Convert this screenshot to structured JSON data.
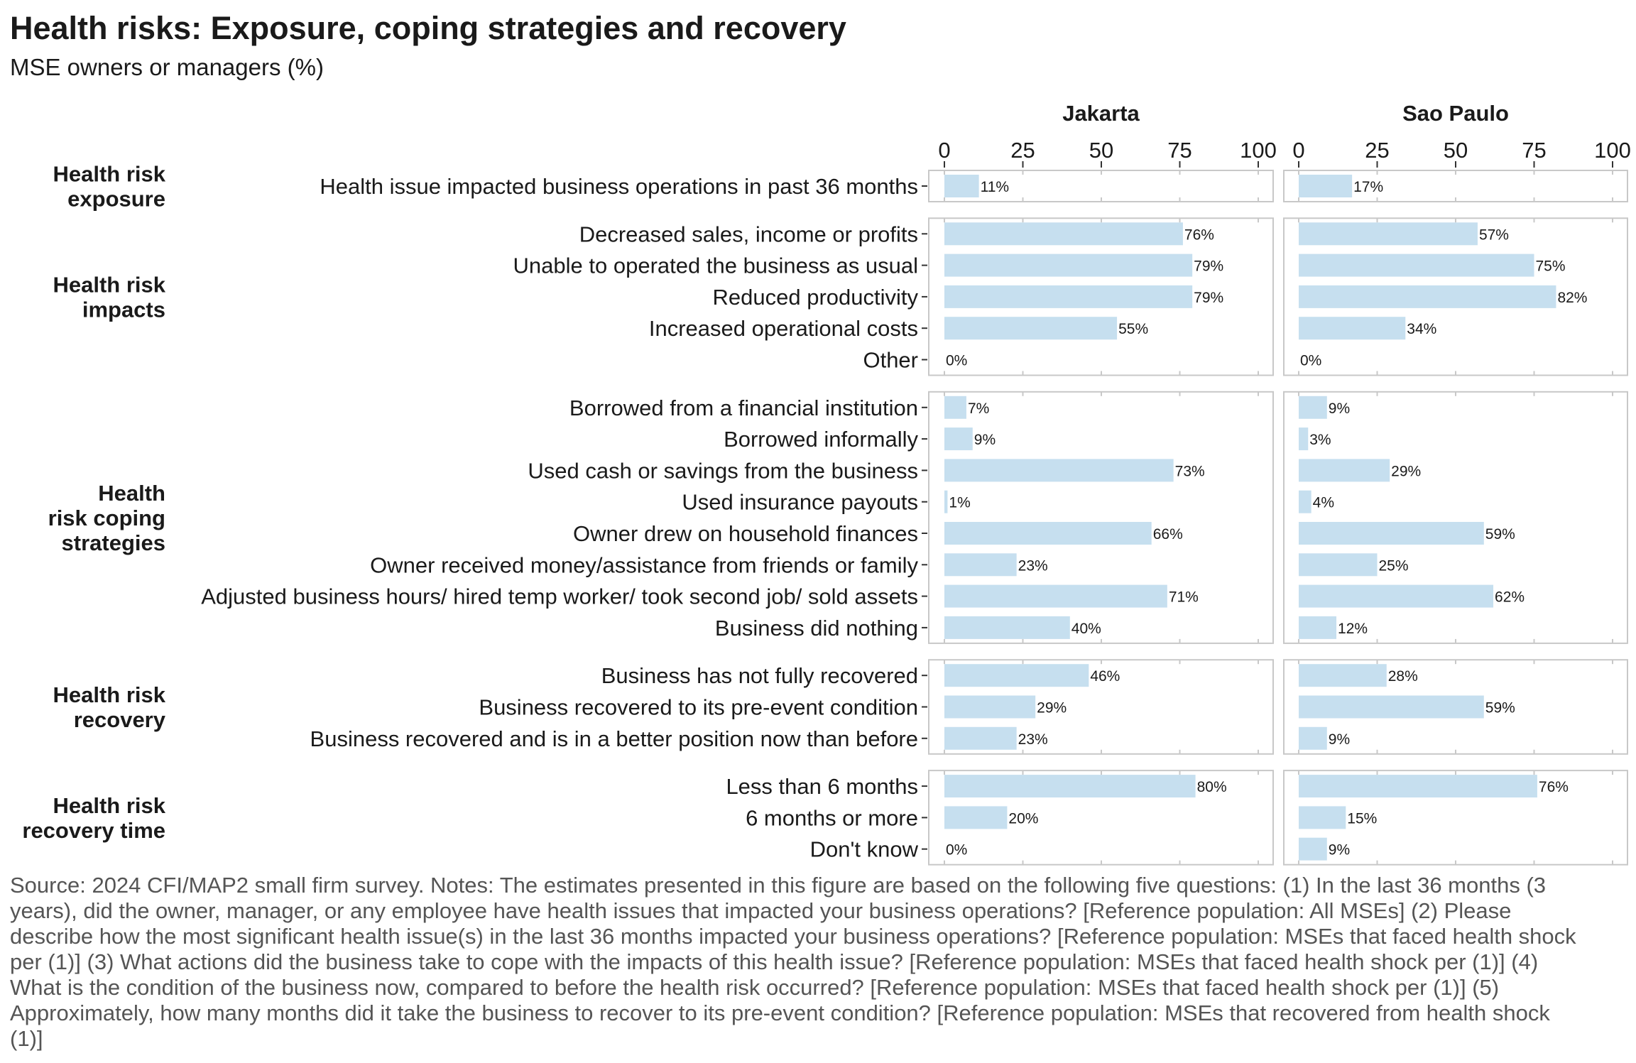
{
  "title": "Health risks: Exposure, coping strategies and recovery",
  "subtitle": "MSE owners or managers (%)",
  "source": "Source: 2024 CFI/MAP2 small firm survey. Notes: The estimates presented in this figure are based on the following five questions: (1) In the last 36 months (3 years), did the owner, manager, or any employee have health issues that impacted your business operations? [Reference population: All MSEs] (2) Please describe how the most significant health issue(s) in the last 36 months impacted your business operations? [Reference population: MSEs that faced health shock per (1)] (3) What actions did the business take to cope with the impacts of this health issue? [Reference population: MSEs that faced health shock per (1)] (4) What is the condition of the business now, compared to before the health risk occurred? [Reference population: MSEs that faced health shock per (1)] (5) Approximately, how many months did it take the business to recover to its pre-event condition? [Reference population: MSEs that recovered from health shock (1)]",
  "colors": {
    "bar": "#c6dfef",
    "panel_border": "#c8c8c8",
    "grid": "#e6e6e6"
  },
  "chart_data": {
    "type": "bar",
    "orientation": "horizontal",
    "facets": [
      "Jakarta",
      "Sao Paulo"
    ],
    "xlim": [
      0,
      100
    ],
    "xticks": [
      0,
      25,
      50,
      75,
      100
    ],
    "value_suffix": "%",
    "groups": [
      {
        "label": [
          "Health risk",
          "exposure"
        ],
        "items": [
          {
            "label": "Health issue impacted business operations in past 36 months",
            "values": [
              11,
              17
            ]
          }
        ]
      },
      {
        "label": [
          "Health risk",
          "impacts"
        ],
        "items": [
          {
            "label": "Decreased sales, income or profits",
            "values": [
              76,
              57
            ]
          },
          {
            "label": "Unable to operated the business as usual",
            "values": [
              79,
              75
            ]
          },
          {
            "label": "Reduced productivity",
            "values": [
              79,
              82
            ]
          },
          {
            "label": "Increased operational costs",
            "values": [
              55,
              34
            ]
          },
          {
            "label": "Other",
            "values": [
              0,
              0
            ]
          }
        ]
      },
      {
        "label": [
          "Health",
          "risk coping",
          "strategies"
        ],
        "items": [
          {
            "label": "Borrowed from a financial institution",
            "values": [
              7,
              9
            ]
          },
          {
            "label": "Borrowed informally",
            "values": [
              9,
              3
            ]
          },
          {
            "label": "Used cash or savings from the business",
            "values": [
              73,
              29
            ]
          },
          {
            "label": "Used insurance payouts",
            "values": [
              1,
              4
            ]
          },
          {
            "label": "Owner drew on household finances",
            "values": [
              66,
              59
            ]
          },
          {
            "label": "Owner received money/assistance from friends or family",
            "values": [
              23,
              25
            ]
          },
          {
            "label": "Adjusted business hours/ hired temp worker/ took second job/ sold assets",
            "values": [
              71,
              62
            ]
          },
          {
            "label": "Business did nothing",
            "values": [
              40,
              12
            ]
          }
        ]
      },
      {
        "label": [
          "Health risk",
          "recovery"
        ],
        "items": [
          {
            "label": "Business has not fully recovered",
            "values": [
              46,
              28
            ]
          },
          {
            "label": "Business recovered to its pre-event condition",
            "values": [
              29,
              59
            ]
          },
          {
            "label": "Business recovered and is in a better position now than before",
            "values": [
              23,
              9
            ]
          }
        ]
      },
      {
        "label": [
          "Health risk",
          "recovery time"
        ],
        "items": [
          {
            "label": "Less than 6 months",
            "values": [
              80,
              76
            ]
          },
          {
            "label": "6 months or more",
            "values": [
              20,
              15
            ]
          },
          {
            "label": "Don't know",
            "values": [
              0,
              9
            ]
          }
        ]
      }
    ]
  }
}
